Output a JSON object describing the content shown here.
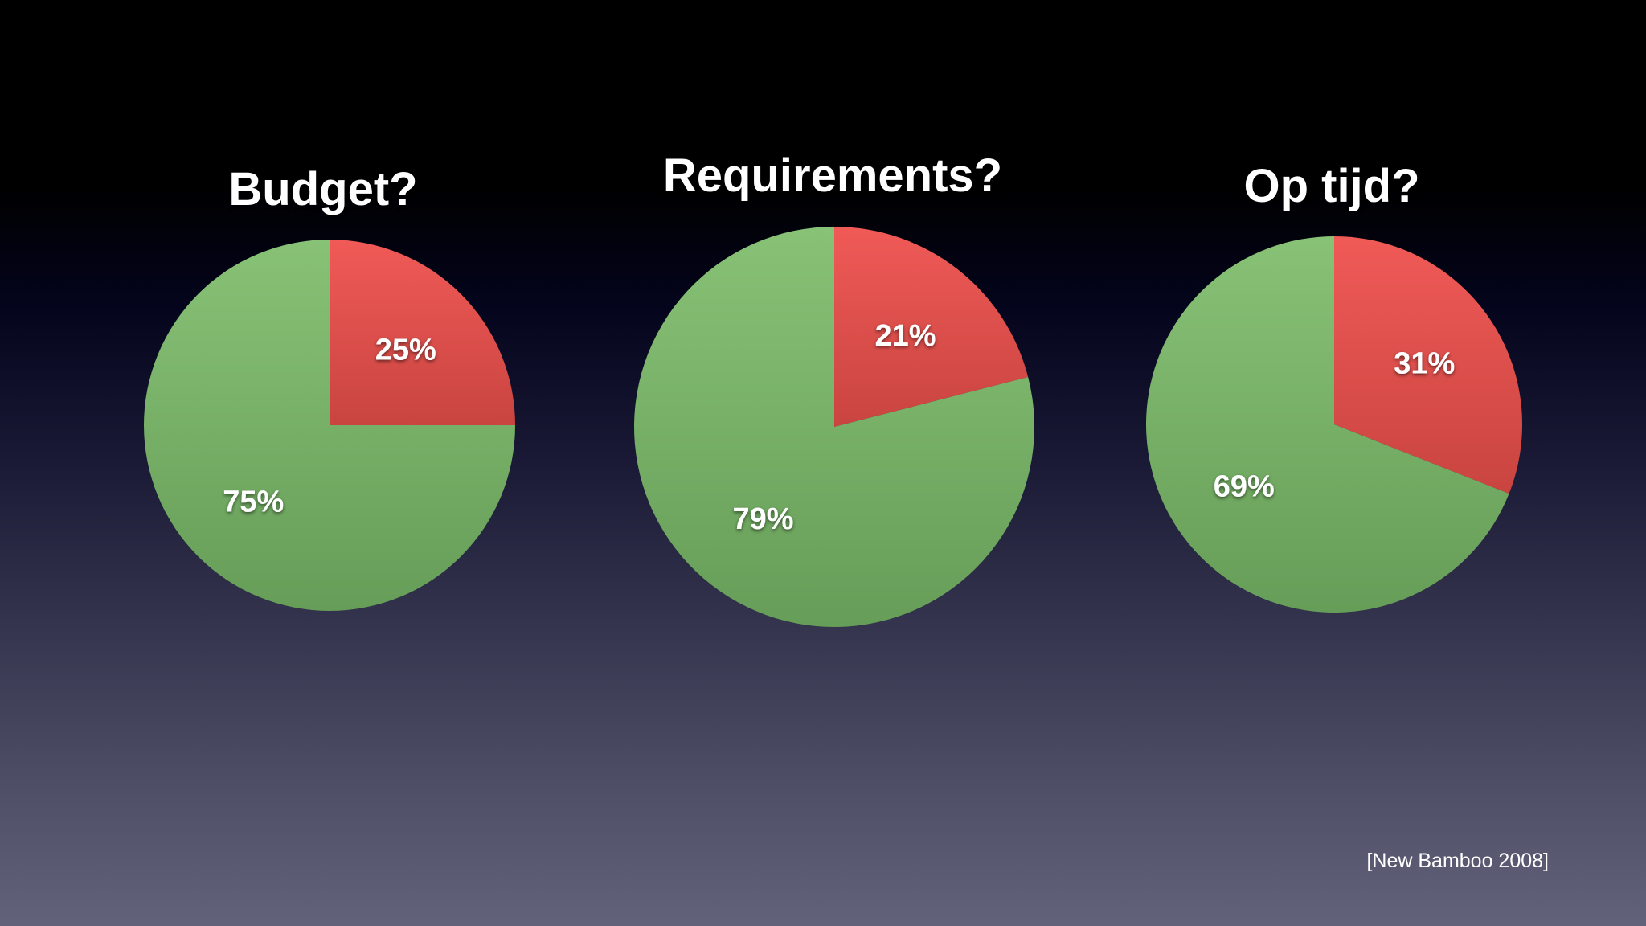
{
  "source": "[New Bamboo 2008]",
  "colors": {
    "red": "#e0504d",
    "green": "#78b368"
  },
  "chart_data": [
    {
      "type": "pie",
      "title": "Budget?",
      "categories": [
        "red",
        "green"
      ],
      "values": [
        25,
        75
      ],
      "labels": [
        "25%",
        "75%"
      ]
    },
    {
      "type": "pie",
      "title": "Requirements?",
      "categories": [
        "red",
        "green"
      ],
      "values": [
        21,
        79
      ],
      "labels": [
        "21%",
        "79%"
      ]
    },
    {
      "type": "pie",
      "title": "Op tijd?",
      "categories": [
        "red",
        "green"
      ],
      "values": [
        31,
        69
      ],
      "labels": [
        "31%",
        "69%"
      ]
    }
  ]
}
